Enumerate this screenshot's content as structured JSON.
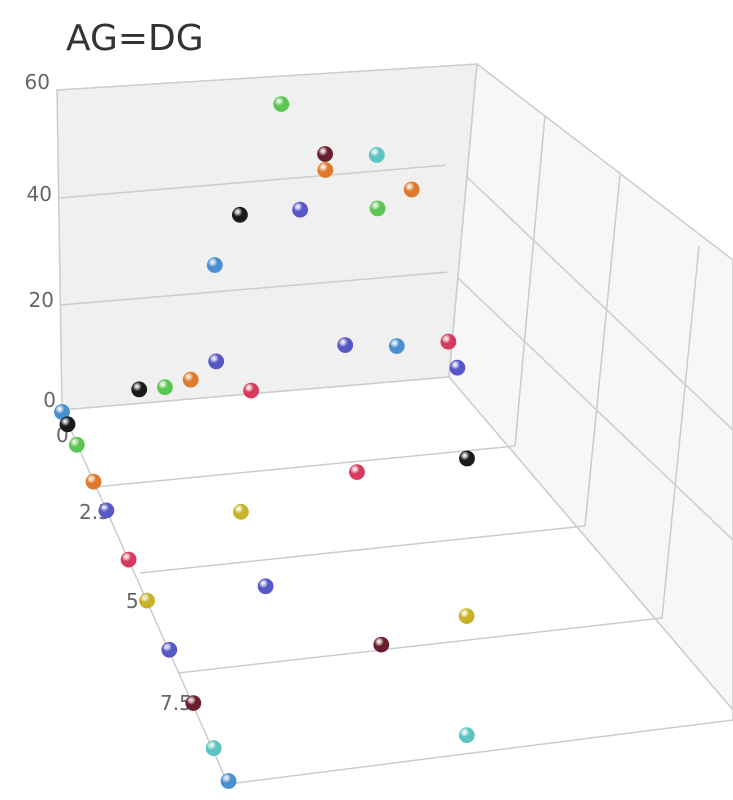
{
  "chart_data": {
    "type": "scatter",
    "title": "AG=DG",
    "y_ticks": [
      "0",
      "20",
      "40",
      "60"
    ],
    "x_ticks": [
      "0",
      "2.5",
      "5",
      "7.5"
    ],
    "ylim": [
      0,
      60
    ],
    "xlim": [
      0,
      9
    ],
    "points": [
      {
        "x": 0,
        "y": 0,
        "z": 0,
        "color": "#4a8fd0"
      },
      {
        "x": 0.3,
        "y": 0,
        "z": 0,
        "color": "#1a1a1a"
      },
      {
        "x": 0.8,
        "y": 0,
        "z": 0,
        "color": "#5cc653"
      },
      {
        "x": 1.7,
        "y": 0,
        "z": 0,
        "color": "#e07a2a"
      },
      {
        "x": 2.4,
        "y": 0,
        "z": 0,
        "color": "#5757c8"
      },
      {
        "x": 3.6,
        "y": 0,
        "z": 0,
        "color": "#d83a5f"
      },
      {
        "x": 4.6,
        "y": 0,
        "z": 0,
        "color": "#c7b228"
      },
      {
        "x": 5.8,
        "y": 0,
        "z": 0,
        "color": "#5757c8"
      },
      {
        "x": 7.1,
        "y": 0,
        "z": 0,
        "color": "#6b1f2e"
      },
      {
        "x": 8.2,
        "y": 0,
        "z": 0,
        "color": "#5cc5c2"
      },
      {
        "x": 9.0,
        "y": 0,
        "z": 0,
        "color": "#4a8fd0"
      },
      {
        "x": 0,
        "y": 3,
        "z": 0.9,
        "color": "#1a1a1a"
      },
      {
        "x": 0,
        "y": 3,
        "z": 1.2,
        "color": "#5cc653"
      },
      {
        "x": 0,
        "y": 4,
        "z": 1.5,
        "color": "#e07a2a"
      },
      {
        "x": 0,
        "y": 7,
        "z": 1.8,
        "color": "#5757c8"
      },
      {
        "x": 0,
        "y": 1,
        "z": 2.2,
        "color": "#d83a5f"
      },
      {
        "x": 0,
        "y": 8,
        "z": 3.3,
        "color": "#5757c8"
      },
      {
        "x": 0,
        "y": 7,
        "z": 3.9,
        "color": "#4a8fd0"
      },
      {
        "x": 0,
        "y": 7,
        "z": 4.5,
        "color": "#d83a5f"
      },
      {
        "x": 0,
        "y": 2,
        "z": 4.6,
        "color": "#5757c8"
      },
      {
        "x": 0,
        "y": 25,
        "z": 1.8,
        "color": "#4a8fd0"
      },
      {
        "x": 0,
        "y": 34,
        "z": 2.1,
        "color": "#1a1a1a"
      },
      {
        "x": 0,
        "y": 34,
        "z": 2.8,
        "color": "#5757c8"
      },
      {
        "x": 0,
        "y": 41,
        "z": 3.1,
        "color": "#e07a2a"
      },
      {
        "x": 0,
        "y": 44,
        "z": 3.1,
        "color": "#6b1f2e"
      },
      {
        "x": 0,
        "y": 43,
        "z": 3.7,
        "color": "#5cc5c2"
      },
      {
        "x": 0,
        "y": 54,
        "z": 2.6,
        "color": "#5cc653"
      },
      {
        "x": 0,
        "y": 36,
        "z": 4.1,
        "color": "#e07a2a"
      },
      {
        "x": 0,
        "y": 33,
        "z": 3.7,
        "color": "#5cc653"
      },
      {
        "x": 2,
        "y": 0,
        "z": 3.0,
        "color": "#d83a5f"
      },
      {
        "x": 2.7,
        "y": 0,
        "z": 1.5,
        "color": "#c7b228"
      },
      {
        "x": 1.9,
        "y": 0,
        "z": 4.3,
        "color": "#1a1a1a"
      },
      {
        "x": 4.5,
        "y": 0,
        "z": 1.4,
        "color": "#5757c8"
      },
      {
        "x": 5.6,
        "y": 0,
        "z": 3.5,
        "color": "#c7b228"
      },
      {
        "x": 6.1,
        "y": 0,
        "z": 2.4,
        "color": "#6b1f2e"
      },
      {
        "x": 8.4,
        "y": 0,
        "z": 2.9,
        "color": "#5cc5c2"
      }
    ]
  }
}
